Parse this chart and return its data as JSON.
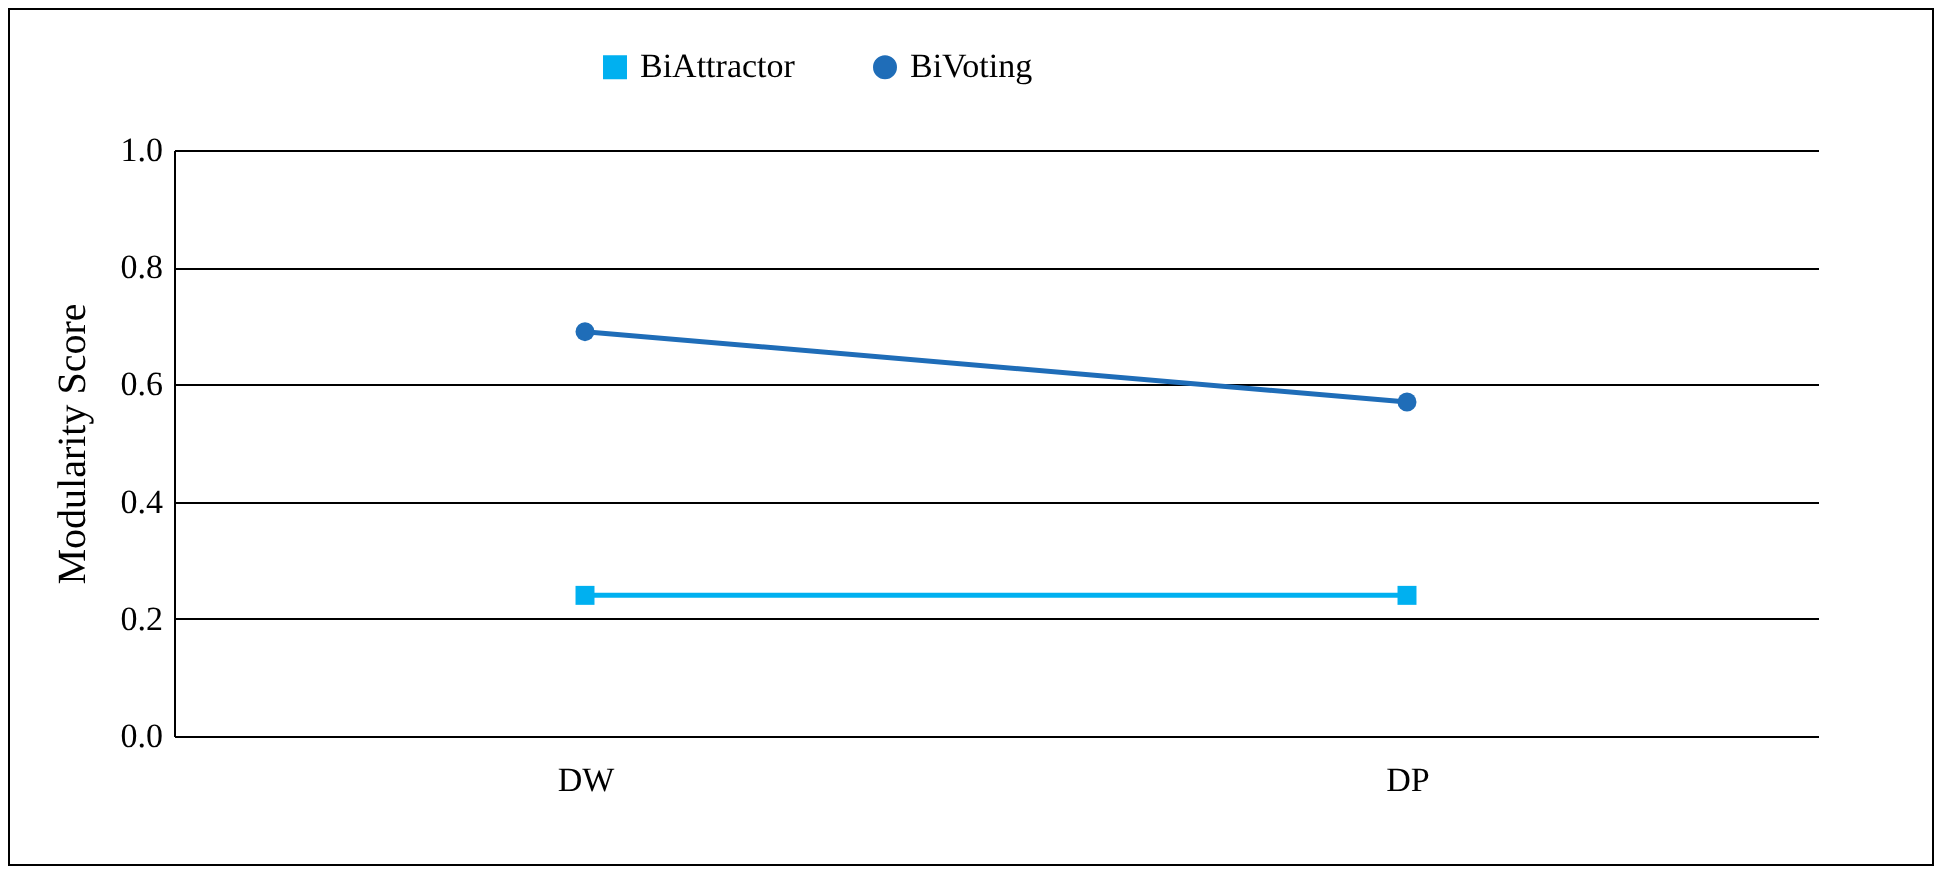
{
  "chart_data": {
    "type": "line",
    "ylabel": "Modularity Score",
    "categories": [
      "DW",
      "DP"
    ],
    "series": [
      {
        "name": "BiAttractor",
        "color": "#00b0f0",
        "marker": "square",
        "values": [
          0.24,
          0.24
        ]
      },
      {
        "name": "BiVoting",
        "color": "#1f6db8",
        "marker": "circle",
        "values": [
          0.69,
          0.57
        ]
      }
    ],
    "ylim": [
      0,
      1
    ],
    "yticks": [
      {
        "value": 0,
        "label": "0.0"
      },
      {
        "value": 0.2,
        "label": "0.2"
      },
      {
        "value": 0.4,
        "label": "0.4"
      },
      {
        "value": 0.6,
        "label": "0.6"
      },
      {
        "value": 0.8,
        "label": "0.8"
      },
      {
        "value": 1,
        "label": "1.0"
      }
    ],
    "grid": "y",
    "legend": "top"
  }
}
